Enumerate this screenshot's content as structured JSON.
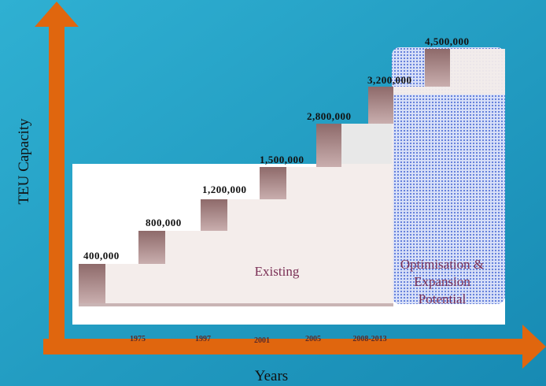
{
  "axes": {
    "y_label": "TEU Capacity",
    "x_label": "Years"
  },
  "steps": [
    "400,000",
    "800,000",
    "1,200,000",
    "1,500,000",
    "2,800,000",
    "3,200,000",
    "4,500,000"
  ],
  "years": [
    "1975",
    "1997",
    "2001",
    "2005",
    "2008-2013"
  ],
  "regions": {
    "existing": "Existing",
    "potential": [
      "Optimisation &",
      "Expansion",
      "Potential"
    ]
  }
}
